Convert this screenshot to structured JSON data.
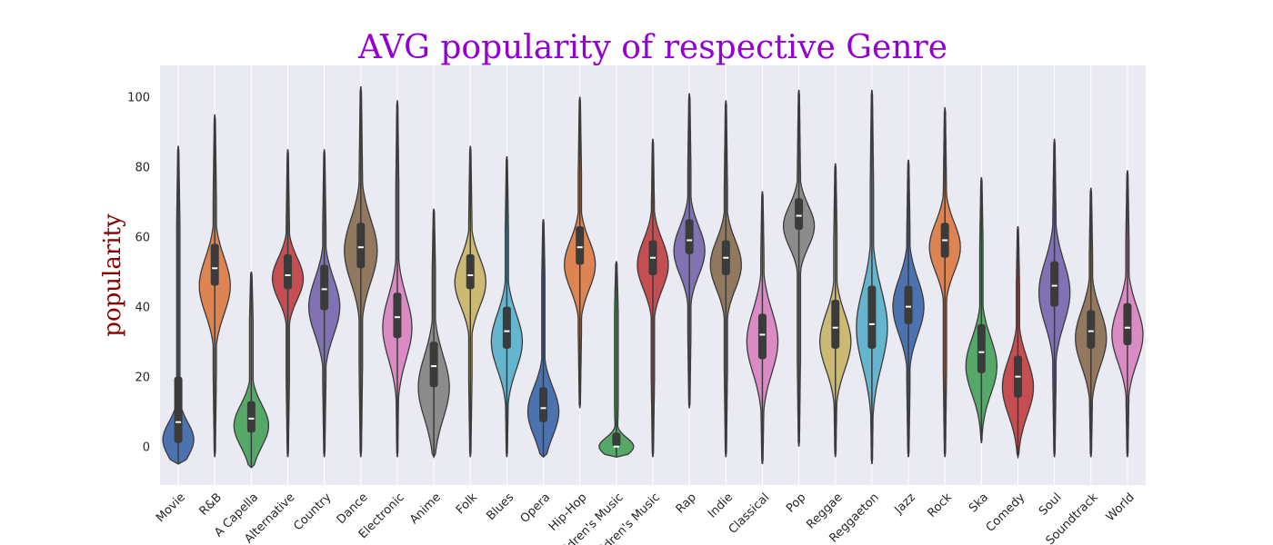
{
  "chart_data": {
    "type": "violin",
    "title": "AVG popularity of respective Genre",
    "xlabel": "",
    "ylabel": "popularity",
    "ylim": [
      -11,
      109
    ],
    "yticks": [
      0,
      20,
      40,
      60,
      80,
      100
    ],
    "grid": "vertical",
    "palette": [
      "#4c72b0",
      "#dd8452",
      "#55a868",
      "#c44e52",
      "#8172b3",
      "#937860",
      "#da8bc3",
      "#8c8c8c",
      "#ccb974",
      "#64b5cd"
    ],
    "categories": [
      "Movie",
      "R&B",
      "A Capella",
      "Alternative",
      "Country",
      "Dance",
      "Electronic",
      "Anime",
      "Folk",
      "Blues",
      "Opera",
      "Hip-Hop",
      "Children's Music",
      "Children's Music",
      "Rap",
      "Indie",
      "Classical",
      "Pop",
      "Reggae",
      "Reggaeton",
      "Jazz",
      "Rock",
      "Ska",
      "Comedy",
      "Soul",
      "Soundtrack",
      "World"
    ],
    "series": [
      {
        "min": -5,
        "max": 86,
        "q1": 1,
        "median": 7,
        "q3": 20,
        "mode": 2,
        "spread": 5,
        "width": 0.85
      },
      {
        "min": -3,
        "max": 95,
        "q1": 46,
        "median": 51,
        "q3": 58,
        "mode": 46,
        "spread": 8,
        "width": 0.85
      },
      {
        "min": -6,
        "max": 50,
        "q1": 4,
        "median": 8,
        "q3": 13,
        "mode": 6,
        "spread": 6,
        "width": 0.95
      },
      {
        "min": -3,
        "max": 85,
        "q1": 45,
        "median": 49,
        "q3": 55,
        "mode": 48,
        "spread": 6,
        "width": 0.85
      },
      {
        "min": -3,
        "max": 85,
        "q1": 39,
        "median": 45,
        "q3": 52,
        "mode": 40,
        "spread": 8,
        "width": 0.85
      },
      {
        "min": -3,
        "max": 103,
        "q1": 51,
        "median": 57,
        "q3": 64,
        "mode": 56,
        "spread": 9,
        "width": 0.9
      },
      {
        "min": -3,
        "max": 99,
        "q1": 31,
        "median": 37,
        "q3": 44,
        "mode": 34,
        "spread": 9,
        "width": 0.8
      },
      {
        "min": -3,
        "max": 68,
        "q1": 17,
        "median": 23,
        "q3": 30,
        "mode": 17,
        "spread": 9,
        "width": 0.85
      },
      {
        "min": -3,
        "max": 86,
        "q1": 45,
        "median": 49,
        "q3": 55,
        "mode": 47,
        "spread": 7,
        "width": 0.85
      },
      {
        "min": -3,
        "max": 83,
        "q1": 28,
        "median": 33,
        "q3": 40,
        "mode": 30,
        "spread": 8,
        "width": 0.85
      },
      {
        "min": -3,
        "max": 65,
        "q1": 7,
        "median": 11,
        "q3": 17,
        "mode": 10,
        "spread": 7,
        "width": 0.85
      },
      {
        "min": 11,
        "max": 100,
        "q1": 52,
        "median": 57,
        "q3": 63,
        "mode": 52,
        "spread": 7,
        "width": 0.85
      },
      {
        "min": -3,
        "max": 53,
        "q1": 0,
        "median": 0,
        "q3": 4,
        "mode": 0,
        "spread": 2.5,
        "width": 0.95
      },
      {
        "min": -3,
        "max": 88,
        "q1": 49,
        "median": 54,
        "q3": 59,
        "mode": 52,
        "spread": 7,
        "width": 0.85
      },
      {
        "min": 11,
        "max": 101,
        "q1": 55,
        "median": 59,
        "q3": 65,
        "mode": 56,
        "spread": 7,
        "width": 0.85
      },
      {
        "min": -3,
        "max": 99,
        "q1": 49,
        "median": 54,
        "q3": 59,
        "mode": 52,
        "spread": 7,
        "width": 0.85
      },
      {
        "min": -5,
        "max": 73,
        "q1": 25,
        "median": 32,
        "q3": 38,
        "mode": 30,
        "spread": 9,
        "width": 0.85
      },
      {
        "min": 0,
        "max": 102,
        "q1": 62,
        "median": 66,
        "q3": 71,
        "mode": 63,
        "spread": 6,
        "width": 0.85
      },
      {
        "min": -3,
        "max": 81,
        "q1": 28,
        "median": 34,
        "q3": 42,
        "mode": 30,
        "spread": 8,
        "width": 0.85
      },
      {
        "min": -5,
        "max": 102,
        "q1": 28,
        "median": 35,
        "q3": 46,
        "mode": 34,
        "spread": 11,
        "width": 0.85
      },
      {
        "min": -3,
        "max": 82,
        "q1": 35,
        "median": 40,
        "q3": 46,
        "mode": 40,
        "spread": 8,
        "width": 0.85
      },
      {
        "min": -3,
        "max": 97,
        "q1": 54,
        "median": 59,
        "q3": 64,
        "mode": 57,
        "spread": 7,
        "width": 0.85
      },
      {
        "min": 1,
        "max": 77,
        "q1": 21,
        "median": 27,
        "q3": 35,
        "mode": 23,
        "spread": 8,
        "width": 0.85
      },
      {
        "min": -3,
        "max": 63,
        "q1": 14,
        "median": 20,
        "q3": 26,
        "mode": 17,
        "spread": 8,
        "width": 0.85
      },
      {
        "min": -3,
        "max": 88,
        "q1": 40,
        "median": 46,
        "q3": 53,
        "mode": 44,
        "spread": 9,
        "width": 0.85
      },
      {
        "min": -3,
        "max": 74,
        "q1": 28,
        "median": 33,
        "q3": 39,
        "mode": 31,
        "spread": 8,
        "width": 0.85
      },
      {
        "min": -3,
        "max": 79,
        "q1": 29,
        "median": 34,
        "q3": 41,
        "mode": 32,
        "spread": 8,
        "width": 0.85
      }
    ]
  }
}
